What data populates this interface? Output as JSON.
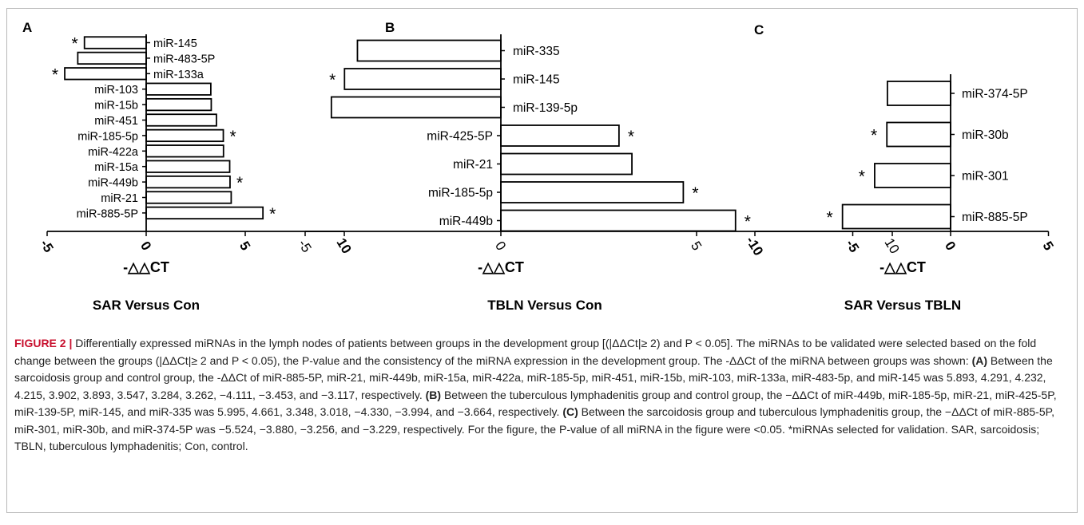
{
  "figure": {
    "caption_label": "FIGURE 2 |",
    "caption_text": " Differentially expressed miRNAs in the lymph nodes of patients between groups in the development group [(|ΔΔCt|≥ 2) and P < 0.05]. The miRNAs to be validated were selected based on the fold change between the groups (|ΔΔCt|≥ 2 and P < 0.05), the P-value and the consistency of the miRNA expression in the development group. The -ΔΔCt of the miRNA between groups was shown: ",
    "caption_a_label": "(A)",
    "caption_a_text": " Between the sarcoidosis group and control group, the -ΔΔCt of miR-885-5P, miR-21, miR-449b, miR-15a, miR-422a, miR-185-5p, miR-451, miR-15b, miR-103, miR-133a, miR-483-5p, and miR-145 was 5.893, 4.291, 4.232, 4.215, 3.902, 3.893, 3.547, 3.284, 3.262, −4.111, −3.453, and −3.117, respectively. ",
    "caption_b_label": "(B)",
    "caption_b_text": " Between the tuberculous lymphadenitis group and control group, the −ΔΔCt of miR-449b, miR-185-5p, miR-21, miR-425-5P, miR-139-5P, miR-145, and miR-335 was 5.995, 4.661, 3.348, 3.018, −4.330, −3.994, and −3.664, respectively. ",
    "caption_c_label": "(C)",
    "caption_c_text": " Between the sarcoidosis group and tuberculous lymphadenitis group, the −ΔΔCt of miR-885-5P, miR-301, miR-30b, and miR-374-5P was −5.524, −3.880, −3.256, and −3.229, respectively. For the figure, the P-value of all miRNA in the figure were <0.05. *miRNAs selected for validation. SAR, sarcoidosis; TBLN, tuberculous lymphadenitis; Con, control."
  },
  "chart_data": [
    {
      "type": "bar",
      "orientation": "horizontal",
      "panel_label": "A",
      "title": "SAR Versus Con",
      "xlabel": "-△△CT",
      "xlim": [
        -5,
        10
      ],
      "xticks": [
        -5,
        0,
        5,
        10
      ],
      "categories": [
        "miR-145",
        "miR-483-5P",
        "miR-133a",
        "miR-103",
        "miR-15b",
        "miR-451",
        "miR-185-5p",
        "miR-422a",
        "miR-15a",
        "miR-449b",
        "miR-21",
        "miR-885-5P"
      ],
      "values": [
        -3.117,
        -3.453,
        -4.111,
        3.262,
        3.284,
        3.547,
        3.893,
        3.902,
        4.215,
        4.232,
        4.291,
        5.893
      ],
      "marked": [
        true,
        false,
        true,
        false,
        false,
        false,
        true,
        false,
        false,
        true,
        false,
        true
      ],
      "marker": "*"
    },
    {
      "type": "bar",
      "orientation": "horizontal",
      "panel_label": "B",
      "title": "TBLN Versus Con",
      "xlabel": "-△△CT",
      "xlim": [
        -5,
        10
      ],
      "xticks": [
        -5,
        0,
        5,
        10
      ],
      "categories": [
        "miR-335",
        "miR-145",
        "miR-139-5p",
        "miR-425-5P",
        "miR-21",
        "miR-185-5p",
        "miR-449b"
      ],
      "values": [
        -3.664,
        -3.994,
        -4.33,
        3.018,
        3.348,
        4.661,
        5.995
      ],
      "marked": [
        false,
        true,
        false,
        true,
        false,
        true,
        true
      ],
      "marker": "*"
    },
    {
      "type": "bar",
      "orientation": "horizontal",
      "panel_label": "C",
      "title": "SAR Versus TBLN",
      "xlabel": "-△△CT",
      "xlim": [
        -10,
        5
      ],
      "xticks": [
        -10,
        -5,
        0,
        5
      ],
      "categories": [
        "miR-374-5P",
        "miR-30b",
        "miR-301",
        "miR-885-5P"
      ],
      "values": [
        -3.229,
        -3.256,
        -3.88,
        -5.524
      ],
      "marked": [
        false,
        true,
        true,
        true
      ],
      "marker": "*"
    }
  ]
}
